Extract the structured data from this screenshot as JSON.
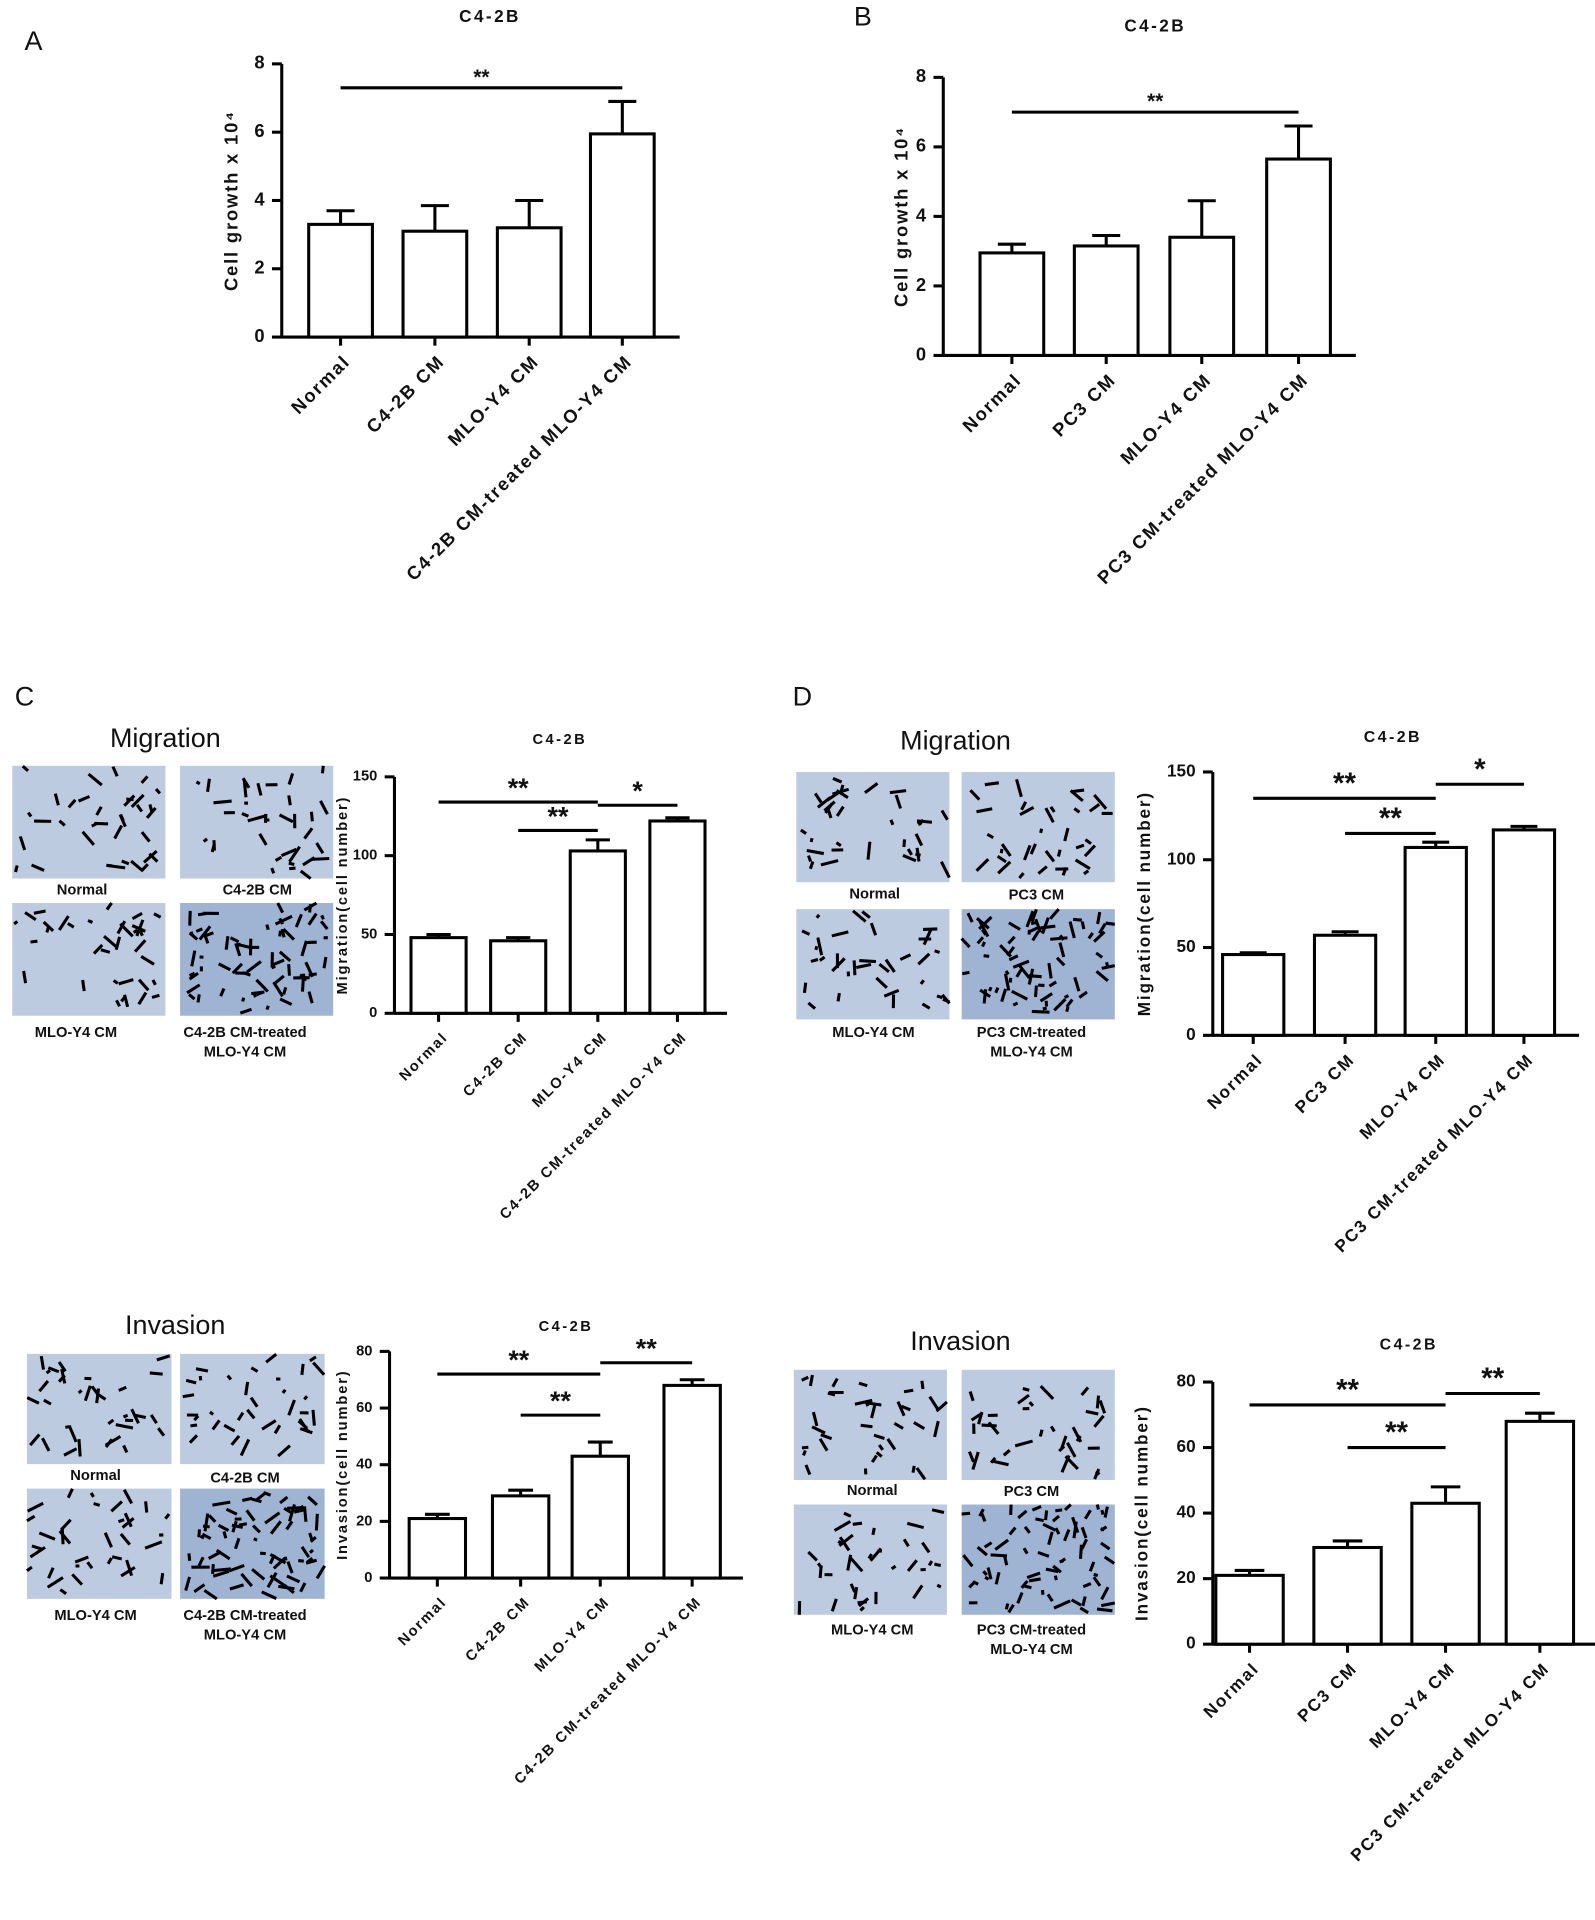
{
  "chart_data": [
    {
      "type": "bar",
      "panel": "A",
      "title": "C4-2B",
      "y_label": "Cell growth x 10⁴",
      "categories": [
        "Normal",
        "C4-2B CM",
        "MLO-Y4 CM",
        "C4-2B CM-treated MLO-Y4 CM"
      ],
      "values": [
        3.3,
        3.1,
        3.2,
        5.95
      ],
      "errors": [
        0.4,
        0.75,
        0.8,
        0.95
      ],
      "ylim": [
        0,
        8
      ],
      "yticks": [
        0,
        2,
        4,
        6,
        8
      ],
      "annotations": [
        "**"
      ]
    },
    {
      "type": "bar",
      "panel": "B",
      "title": "C4-2B",
      "y_label": "Cell growth x 10⁴",
      "categories": [
        "Normal",
        "PC3 CM",
        "MLO-Y4 CM",
        "PC3 CM-treated MLO-Y4 CM"
      ],
      "values": [
        2.95,
        3.15,
        3.4,
        5.65
      ],
      "errors": [
        0.25,
        0.3,
        1.05,
        0.95
      ],
      "ylim": [
        0,
        8
      ],
      "yticks": [
        0,
        2,
        4,
        6,
        8
      ],
      "annotations": [
        "**"
      ]
    },
    {
      "type": "bar",
      "panel": "C",
      "heading": "Migration",
      "title": "C4-2B",
      "y_label": "Migration(cell number)",
      "image_labels": [
        [
          "Normal"
        ],
        [
          "C4-2B CM"
        ],
        [
          "MLO-Y4 CM"
        ],
        [
          "C4-2B CM-treated",
          "MLO-Y4 CM"
        ]
      ],
      "categories": [
        "Normal",
        "C4-2B CM",
        "MLO-Y4 CM",
        "C4-2B CM-treated MLO-Y4 CM"
      ],
      "values": [
        48,
        46,
        103,
        122
      ],
      "errors": [
        2,
        2,
        7,
        2
      ],
      "ylim": [
        0,
        150
      ],
      "yticks": [
        0,
        50,
        100,
        150
      ],
      "annotations": [
        "**",
        "**",
        "*"
      ]
    },
    {
      "type": "bar",
      "heading": "Invasion",
      "title": "C4-2B",
      "y_label": "Invasion(cell number)",
      "image_labels": [
        [
          "Normal"
        ],
        [
          "C4-2B CM"
        ],
        [
          "MLO-Y4 CM"
        ],
        [
          "C4-2B CM-treated",
          "MLO-Y4 CM"
        ]
      ],
      "categories": [
        "Normal",
        "C4-2B CM",
        "MLO-Y4 CM",
        "C4-2B CM-treated MLO-Y4 CM"
      ],
      "values": [
        21,
        29,
        43,
        68
      ],
      "errors": [
        1.5,
        2,
        5,
        2
      ],
      "ylim": [
        0,
        80
      ],
      "yticks": [
        0,
        20,
        40,
        60,
        80
      ],
      "annotations": [
        "**",
        "**",
        "**"
      ]
    },
    {
      "type": "bar",
      "panel": "D",
      "heading": "Migration",
      "title": "C4-2B",
      "y_label": "Migration(cell number)",
      "image_labels": [
        [
          "Normal"
        ],
        [
          "PC3 CM"
        ],
        [
          "MLO-Y4 CM"
        ],
        [
          "PC3 CM-treated",
          "MLO-Y4 CM"
        ]
      ],
      "categories": [
        "Normal",
        "PC3 CM",
        "MLO-Y4 CM",
        "PC3 CM-treated MLO-Y4 CM"
      ],
      "values": [
        46,
        57,
        107,
        117
      ],
      "errors": [
        1,
        2,
        3,
        2
      ],
      "ylim": [
        0,
        150
      ],
      "yticks": [
        0,
        50,
        100,
        150
      ],
      "annotations": [
        "**",
        "**",
        "*"
      ]
    },
    {
      "type": "bar",
      "heading": "Invasion",
      "title": "C4-2B",
      "y_label": "Invasion(cell number)",
      "image_labels": [
        [
          "Normal"
        ],
        [
          "PC3 CM"
        ],
        [
          "MLO-Y4 CM"
        ],
        [
          "PC3 CM-treated",
          "MLO-Y4 CM"
        ]
      ],
      "categories": [
        "Normal",
        "PC3 CM",
        "MLO-Y4 CM",
        "PC3 CM-treated MLO-Y4 CM"
      ],
      "values": [
        21,
        29.5,
        43,
        68
      ],
      "errors": [
        1.5,
        2,
        5,
        2.5
      ],
      "ylim": [
        0,
        80
      ],
      "yticks": [
        0,
        20,
        40,
        60,
        80
      ],
      "annotations": [
        "**",
        "**",
        "**"
      ]
    }
  ]
}
